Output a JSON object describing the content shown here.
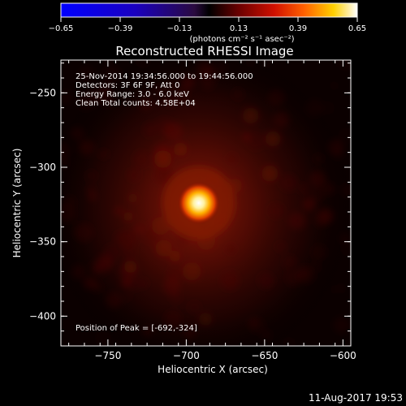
{
  "colorbar": {
    "ticks": [
      "-0.65",
      "-0.39",
      "-0.13",
      "0.13",
      "0.39",
      "0.65"
    ],
    "unit_label": "(photons cm⁻² s⁻¹ asec⁻²)"
  },
  "footer": {
    "timestamp": "11-Aug-2017 19:53"
  },
  "chart_data": {
    "type": "heatmap",
    "title": "Reconstructed RHESSI Image",
    "xlabel": "Heliocentric X (arcsec)",
    "ylabel": "Heliocentric Y (arcsec)",
    "xlim": [
      -780,
      -595
    ],
    "ylim": [
      -420,
      -228
    ],
    "xticks": [
      -750,
      -700,
      -650,
      -600
    ],
    "yticks": [
      -250,
      -300,
      -350,
      -400
    ],
    "xtick_labels": [
      "−750",
      "−700",
      "−650",
      "−600"
    ],
    "ytick_labels": [
      "−250",
      "−300",
      "−350",
      "−400"
    ],
    "color_range": [
      -0.65,
      0.65
    ],
    "peak": {
      "x": -692,
      "y": -324
    },
    "annotations": [
      "25-Nov-2014 19:34:56.000 to 19:44:56.000",
      "Detectors: 3F 6F 9F, Att 0",
      "Energy Range: 3.0 - 6.0 keV",
      "Clean    Total counts: 4.58E+04"
    ],
    "peak_label": "Position of Peak = [-692,-324]",
    "colors": {
      "background": "#000000",
      "axis": "#ffffff",
      "colormap": "red-temperature"
    }
  }
}
